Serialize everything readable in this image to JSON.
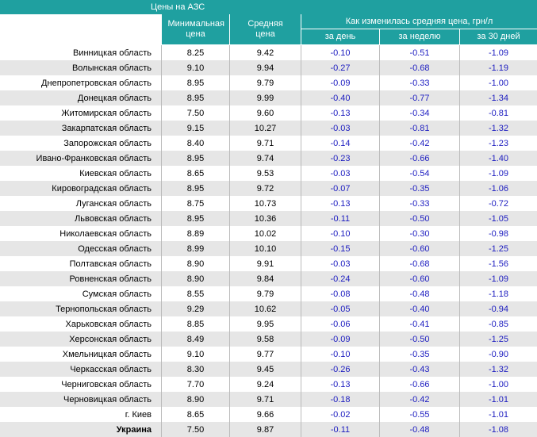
{
  "header": {
    "title": "Цены на АЗС"
  },
  "table": {
    "columns": [
      "Минимальная цена",
      "Средняя цена"
    ],
    "group": "Как изменилась средняя цена, грн/л",
    "subcolumns": [
      "за день",
      "за неделю",
      "за 30 дней"
    ],
    "rows": [
      [
        "Винницкая область",
        "8.25",
        "9.42",
        "-0.10",
        "-0.51",
        "-1.09"
      ],
      [
        "Волынская область",
        "9.10",
        "9.94",
        "-0.27",
        "-0.68",
        "-1.19"
      ],
      [
        "Днепропетровская область",
        "8.95",
        "9.79",
        "-0.09",
        "-0.33",
        "-1.00"
      ],
      [
        "Донецкая область",
        "8.95",
        "9.99",
        "-0.40",
        "-0.77",
        "-1.34"
      ],
      [
        "Житомирская область",
        "7.50",
        "9.60",
        "-0.13",
        "-0.34",
        "-0.81"
      ],
      [
        "Закарпатская область",
        "9.15",
        "10.27",
        "-0.03",
        "-0.81",
        "-1.32"
      ],
      [
        "Запорожская область",
        "8.40",
        "9.71",
        "-0.14",
        "-0.42",
        "-1.23"
      ],
      [
        "Ивано-Франковская область",
        "8.95",
        "9.74",
        "-0.23",
        "-0.66",
        "-1.40"
      ],
      [
        "Киевская область",
        "8.65",
        "9.53",
        "-0.03",
        "-0.54",
        "-1.09"
      ],
      [
        "Кировоградская область",
        "8.95",
        "9.72",
        "-0.07",
        "-0.35",
        "-1.06"
      ],
      [
        "Луганская область",
        "8.75",
        "10.73",
        "-0.13",
        "-0.33",
        "-0.72"
      ],
      [
        "Львовская область",
        "8.95",
        "10.36",
        "-0.11",
        "-0.50",
        "-1.05"
      ],
      [
        "Николаевская область",
        "8.89",
        "10.02",
        "-0.10",
        "-0.30",
        "-0.98"
      ],
      [
        "Одесская область",
        "8.99",
        "10.10",
        "-0.15",
        "-0.60",
        "-1.25"
      ],
      [
        "Полтавская область",
        "8.90",
        "9.91",
        "-0.03",
        "-0.68",
        "-1.56"
      ],
      [
        "Ровненская область",
        "8.90",
        "9.84",
        "-0.24",
        "-0.60",
        "-1.09"
      ],
      [
        "Сумская область",
        "8.55",
        "9.79",
        "-0.08",
        "-0.48",
        "-1.18"
      ],
      [
        "Тернопольская область",
        "9.29",
        "10.62",
        "-0.05",
        "-0.40",
        "-0.94"
      ],
      [
        "Харьковская область",
        "8.85",
        "9.95",
        "-0.06",
        "-0.41",
        "-0.85"
      ],
      [
        "Херсонская область",
        "8.49",
        "9.58",
        "-0.09",
        "-0.50",
        "-1.25"
      ],
      [
        "Хмельницкая область",
        "9.10",
        "9.77",
        "-0.10",
        "-0.35",
        "-0.90"
      ],
      [
        "Черкасская область",
        "8.30",
        "9.45",
        "-0.26",
        "-0.43",
        "-1.32"
      ],
      [
        "Черниговская область",
        "7.70",
        "9.24",
        "-0.13",
        "-0.66",
        "-1.00"
      ],
      [
        "Черновицкая область",
        "8.90",
        "9.71",
        "-0.18",
        "-0.42",
        "-1.01"
      ],
      [
        "г. Киев",
        "8.65",
        "9.66",
        "-0.02",
        "-0.55",
        "-1.01"
      ],
      [
        "Украина",
        "7.50",
        "9.87",
        "-0.11",
        "-0.48",
        "-1.08"
      ]
    ]
  }
}
